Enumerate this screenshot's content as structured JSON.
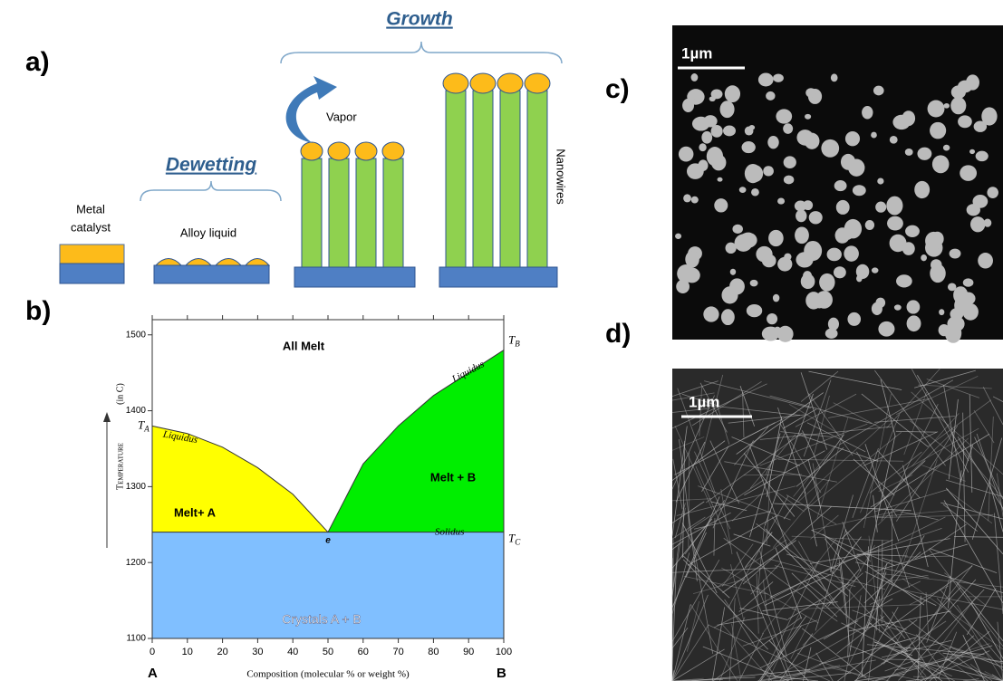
{
  "panel_a": {
    "label": "a)",
    "growth": "Growth",
    "dewetting": "Dewetting",
    "metal": "Metal",
    "catalyst": "catalyst",
    "alloy": "Alloy liquid",
    "vapor": "Vapor",
    "nanowires": "Nanowires"
  },
  "panel_b_label": "b)",
  "chart_data": {
    "type": "phase",
    "xlabel": "Composition (molecular % or weight %)",
    "ylabel_main": "Temperature",
    "ylabel_unit": "(in C)",
    "xlim": [
      0,
      100
    ],
    "ylim": [
      1100,
      1520
    ],
    "xticks": [
      0,
      10,
      20,
      30,
      40,
      50,
      60,
      70,
      80,
      90,
      100
    ],
    "yticks": [
      1100,
      1200,
      1300,
      1400,
      1500
    ],
    "liquidus_a": {
      "name": "Liquidus",
      "color": "#ffff00",
      "x": [
        0,
        10,
        20,
        30,
        40,
        50
      ],
      "y": [
        1380,
        1370,
        1352,
        1325,
        1290,
        1240
      ]
    },
    "liquidus_b": {
      "name": "Liquidus",
      "color": "#00ee00",
      "x": [
        50,
        60,
        70,
        80,
        90,
        100
      ],
      "y": [
        1240,
        1330,
        1380,
        1420,
        1450,
        1480
      ]
    },
    "solidus": {
      "name": "Solidus",
      "value": 1240,
      "color": "#80bfff"
    },
    "regions": {
      "melt": "All Melt",
      "melt_a": "Melt+ A",
      "melt_b": "Melt + B",
      "crystals": "Crystals A + B"
    },
    "eutectic": "e",
    "ta": {
      "main": "T",
      "sub": "A"
    },
    "tb": {
      "main": "T",
      "sub": "B"
    },
    "tc": {
      "main": "T",
      "sub": "C"
    },
    "end_a": "A",
    "end_b": "B"
  },
  "panel_c": {
    "label": "c)",
    "scale": "1µm"
  },
  "panel_d": {
    "label": "d)",
    "scale": "1µm"
  }
}
